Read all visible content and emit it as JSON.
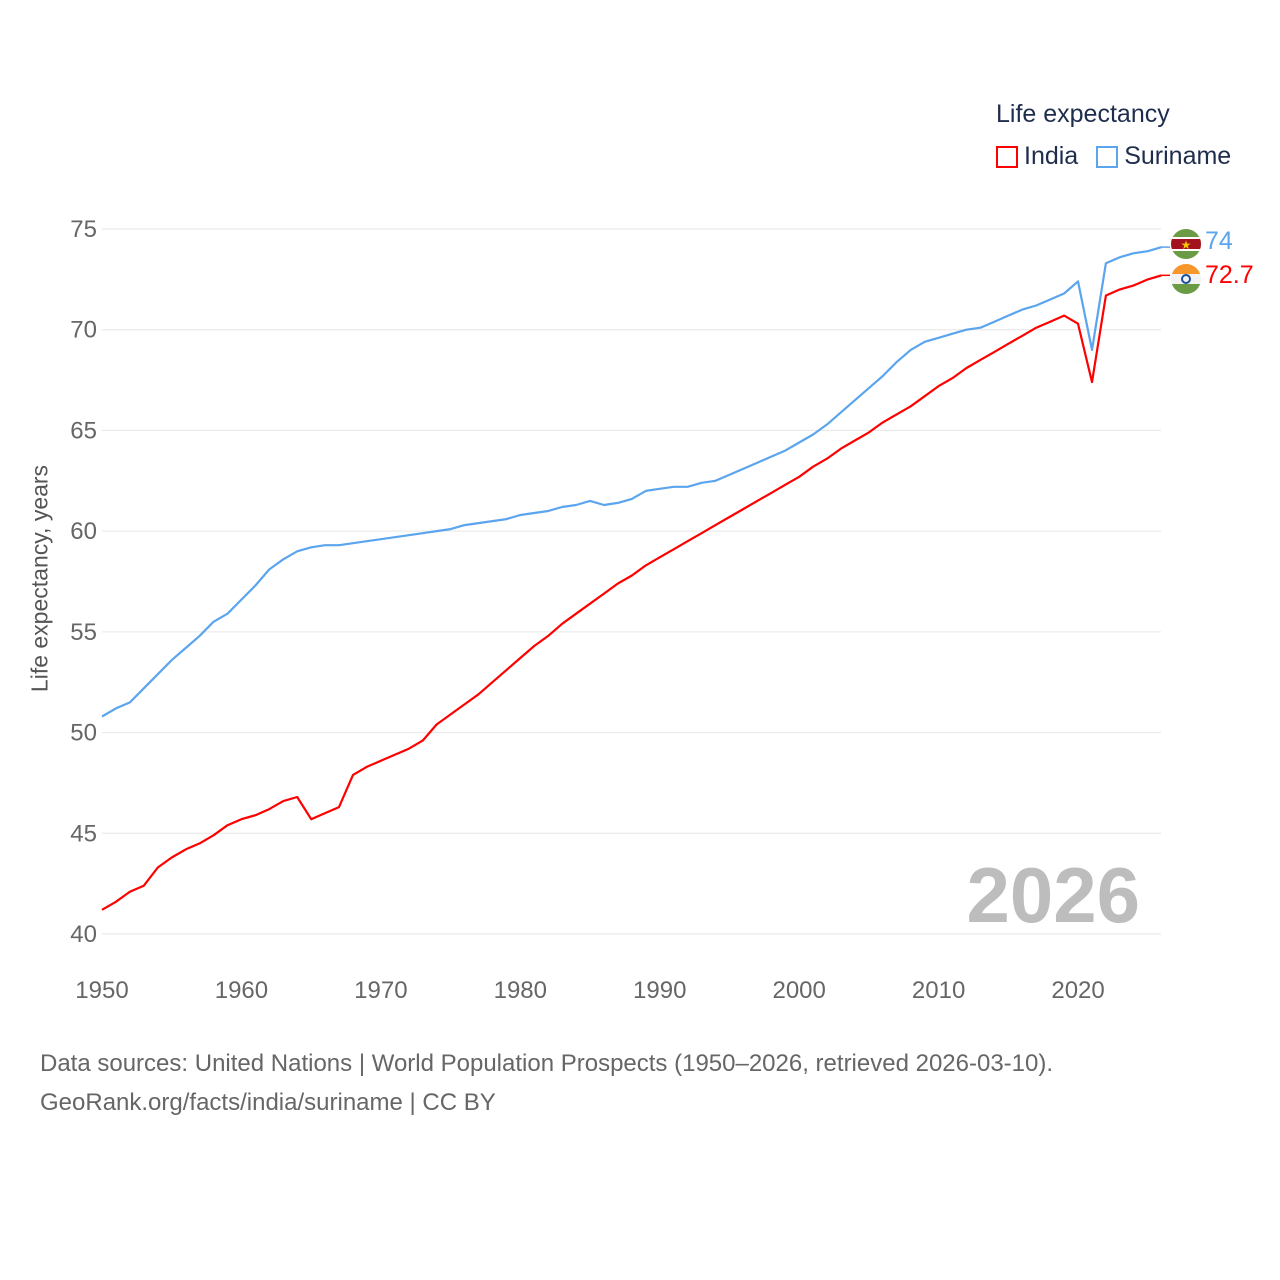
{
  "chart_data": {
    "type": "line",
    "title": "Life expectancy",
    "xlabel": "",
    "ylabel": "Life expectancy, years",
    "xlim": [
      1950,
      2026
    ],
    "ylim": [
      40,
      75
    ],
    "yticks": [
      "40",
      "45",
      "50",
      "55",
      "60",
      "65",
      "70",
      "75"
    ],
    "xticks": [
      "1950",
      "1960",
      "1970",
      "1980",
      "1990",
      "2000",
      "2010",
      "2020"
    ],
    "grid": true,
    "legend": "top-right",
    "year_label": "2026",
    "x_start": 1950,
    "series": [
      {
        "name": "India",
        "color": "#ff0000",
        "end_label": "72.7",
        "values": [
          41.2,
          41.6,
          42.1,
          42.4,
          43.3,
          43.8,
          44.2,
          44.5,
          44.9,
          45.4,
          45.7,
          45.9,
          46.2,
          46.6,
          46.8,
          45.7,
          46.0,
          46.3,
          47.9,
          48.3,
          48.6,
          48.9,
          49.2,
          49.6,
          50.4,
          50.9,
          51.4,
          51.9,
          52.5,
          53.1,
          53.7,
          54.3,
          54.8,
          55.4,
          55.9,
          56.4,
          56.9,
          57.4,
          57.8,
          58.3,
          58.7,
          59.1,
          59.5,
          59.9,
          60.3,
          60.7,
          61.1,
          61.5,
          61.9,
          62.3,
          62.7,
          63.2,
          63.6,
          64.1,
          64.5,
          64.9,
          65.4,
          65.8,
          66.2,
          66.7,
          67.2,
          67.6,
          68.1,
          68.5,
          68.9,
          69.3,
          69.7,
          70.1,
          70.4,
          70.7,
          70.3,
          67.4,
          71.7,
          72.0,
          72.2,
          72.5,
          72.7
        ]
      },
      {
        "name": "Suriname",
        "color": "#5ba4ee",
        "end_label": "74",
        "values": [
          50.8,
          51.2,
          51.5,
          52.2,
          52.9,
          53.6,
          54.2,
          54.8,
          55.5,
          55.9,
          56.6,
          57.3,
          58.1,
          58.6,
          59.0,
          59.2,
          59.3,
          59.3,
          59.4,
          59.5,
          59.6,
          59.7,
          59.8,
          59.9,
          60.0,
          60.1,
          60.3,
          60.4,
          60.5,
          60.6,
          60.8,
          60.9,
          61.0,
          61.2,
          61.3,
          61.5,
          61.3,
          61.4,
          61.6,
          62.0,
          62.1,
          62.2,
          62.2,
          62.4,
          62.5,
          62.8,
          63.1,
          63.4,
          63.7,
          64.0,
          64.4,
          64.8,
          65.3,
          65.9,
          66.5,
          67.1,
          67.7,
          68.4,
          69.0,
          69.4,
          69.6,
          69.8,
          70.0,
          70.1,
          70.4,
          70.7,
          71.0,
          71.2,
          71.5,
          71.8,
          72.4,
          69.0,
          73.3,
          73.6,
          73.8,
          73.9,
          74.1
        ]
      }
    ]
  },
  "legend": {
    "title": "Life expectancy",
    "items": [
      "India",
      "Suriname"
    ]
  },
  "source": {
    "line1": "Data sources: United Nations | World Population Prospects (1950–2026, retrieved 2026-03-10).",
    "line2": "GeoRank.org/facts/india/suriname | CC BY"
  }
}
